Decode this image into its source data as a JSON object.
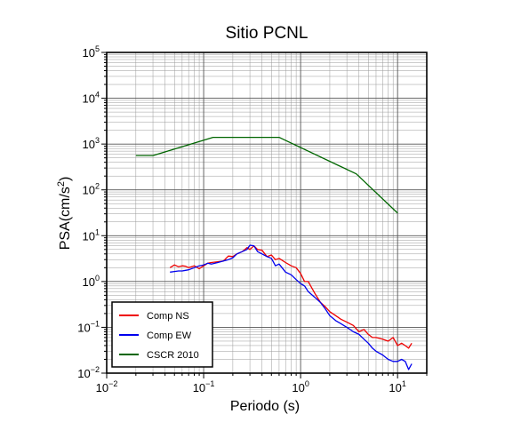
{
  "chart_data": {
    "type": "line",
    "title": "Sitio PCNL",
    "xlabel": "Periodo (s)",
    "ylabel_base": "PSA(cm/s",
    "ylabel_exp": "2",
    "ylabel_close": ")",
    "x_scale": "log",
    "y_scale": "log",
    "xlim": [
      0.01,
      20
    ],
    "ylim": [
      0.01,
      100000
    ],
    "grid": true,
    "legend_position": "bottom-left",
    "x_ticks": [
      {
        "value": 0.01,
        "base": "10",
        "exp": "−2"
      },
      {
        "value": 0.1,
        "base": "10",
        "exp": "−1"
      },
      {
        "value": 1,
        "base": "10",
        "exp": "0"
      },
      {
        "value": 10,
        "base": "10",
        "exp": "1"
      }
    ],
    "y_ticks": [
      {
        "value": 0.01,
        "base": "10",
        "exp": "−2"
      },
      {
        "value": 0.1,
        "base": "10",
        "exp": "−1"
      },
      {
        "value": 1,
        "base": "10",
        "exp": "0"
      },
      {
        "value": 10,
        "base": "10",
        "exp": "1"
      },
      {
        "value": 100,
        "base": "10",
        "exp": "2"
      },
      {
        "value": 1000,
        "base": "10",
        "exp": "3"
      },
      {
        "value": 10000,
        "base": "10",
        "exp": "4"
      },
      {
        "value": 100000,
        "base": "10",
        "exp": "5"
      }
    ],
    "series": [
      {
        "name": "Comp NS",
        "color": "#ee0000",
        "x": [
          0.045,
          0.05,
          0.055,
          0.06,
          0.065,
          0.07,
          0.08,
          0.09,
          0.1,
          0.11,
          0.12,
          0.14,
          0.16,
          0.18,
          0.2,
          0.22,
          0.25,
          0.28,
          0.3,
          0.33,
          0.36,
          0.4,
          0.45,
          0.5,
          0.55,
          0.6,
          0.7,
          0.8,
          0.9,
          1.0,
          1.1,
          1.2,
          1.4,
          1.6,
          1.8,
          2.0,
          2.3,
          2.6,
          3.0,
          3.5,
          4.0,
          4.5,
          5.0,
          5.5,
          6.0,
          7.0,
          8.0,
          9.0,
          10.0,
          11.0,
          12.0,
          13.0,
          14.0
        ],
        "y": [
          2.0,
          2.3,
          2.1,
          2.2,
          2.15,
          2.0,
          2.2,
          1.9,
          2.2,
          2.5,
          2.6,
          2.7,
          2.8,
          3.6,
          3.5,
          4.0,
          4.5,
          5.5,
          5.0,
          6.0,
          5.0,
          4.8,
          3.5,
          3.8,
          3.0,
          3.2,
          2.6,
          2.2,
          2.0,
          1.5,
          1.0,
          1.0,
          0.55,
          0.35,
          0.28,
          0.22,
          0.18,
          0.15,
          0.13,
          0.11,
          0.08,
          0.09,
          0.07,
          0.06,
          0.06,
          0.055,
          0.05,
          0.06,
          0.04,
          0.045,
          0.04,
          0.035,
          0.045
        ]
      },
      {
        "name": "Comp EW",
        "color": "#0000ee",
        "x": [
          0.045,
          0.05,
          0.055,
          0.06,
          0.065,
          0.07,
          0.08,
          0.09,
          0.1,
          0.11,
          0.12,
          0.14,
          0.16,
          0.18,
          0.2,
          0.22,
          0.25,
          0.28,
          0.3,
          0.33,
          0.36,
          0.4,
          0.45,
          0.5,
          0.55,
          0.6,
          0.7,
          0.8,
          0.9,
          1.0,
          1.1,
          1.2,
          1.4,
          1.6,
          1.8,
          2.0,
          2.3,
          2.6,
          3.0,
          3.5,
          4.0,
          4.5,
          5.0,
          5.5,
          6.0,
          7.0,
          8.0,
          9.0,
          10.0,
          11.0,
          12.0,
          13.0,
          14.0
        ],
        "y": [
          1.6,
          1.65,
          1.7,
          1.7,
          1.75,
          1.8,
          2.0,
          2.2,
          2.3,
          2.5,
          2.4,
          2.6,
          2.8,
          3.0,
          3.3,
          4.0,
          4.5,
          5.0,
          6.2,
          6.0,
          4.5,
          4.0,
          3.5,
          3.2,
          2.2,
          2.4,
          1.6,
          1.4,
          1.1,
          0.9,
          0.8,
          0.6,
          0.45,
          0.35,
          0.25,
          0.18,
          0.14,
          0.12,
          0.1,
          0.08,
          0.07,
          0.055,
          0.045,
          0.035,
          0.03,
          0.025,
          0.02,
          0.018,
          0.018,
          0.02,
          0.018,
          0.012,
          0.016
        ]
      },
      {
        "name": "CSCR 2010",
        "color": "#006600",
        "x": [
          0.02,
          0.03,
          0.125,
          0.6,
          3.75,
          10.0
        ],
        "y": [
          560,
          560,
          1400,
          1400,
          224,
          31
        ]
      }
    ]
  }
}
